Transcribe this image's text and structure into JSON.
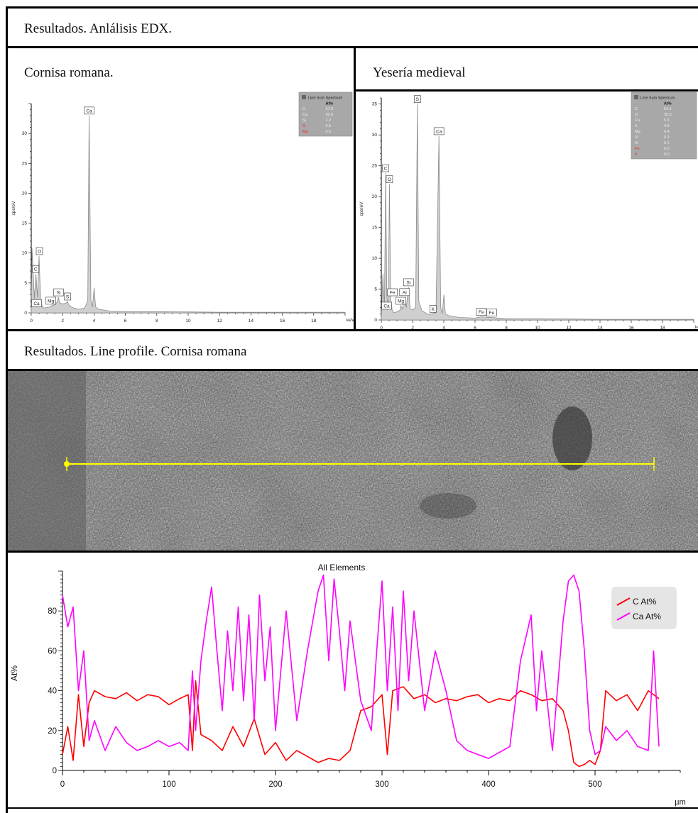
{
  "headings": {
    "edx": "Resultados. Anlálisis EDX.",
    "left": "Cornisa romana.",
    "right": "Yesería medieval",
    "line_profile": "Resultados. Line profile. Cornisa romana"
  },
  "colors": {
    "spectrum_fill": "#cfcfcf",
    "spectrum_stroke": "#8a8a8a",
    "marker": "#ffff00",
    "C": "#ff0000",
    "Ca": "#ff00ff"
  },
  "chart_data": [
    {
      "type": "area",
      "xlabel": "keV",
      "ylabel": "cps/eV",
      "xlim": [
        0,
        20
      ],
      "ylim": [
        0,
        35
      ],
      "xticks": [
        "0",
        "2",
        "4",
        "6",
        "8",
        "10",
        "12",
        "14",
        "16",
        "18"
      ],
      "yticks": [
        "0",
        "5",
        "10",
        "15",
        "20",
        "25",
        "30"
      ],
      "x": [
        0,
        0.05,
        0.2,
        0.3,
        0.4,
        0.5,
        0.55,
        0.6,
        0.7,
        0.8,
        1.0,
        1.2,
        1.3,
        1.45,
        1.55,
        1.65,
        1.74,
        1.8,
        1.9,
        2.0,
        2.2,
        2.31,
        2.4,
        2.6,
        3.0,
        3.4,
        3.6,
        3.69,
        3.8,
        3.9,
        4.01,
        4.1,
        4.3,
        5,
        6,
        8,
        10,
        12,
        14,
        16,
        18,
        20
      ],
      "y": [
        0,
        10.8,
        2.4,
        6.5,
        2.5,
        9.5,
        5.5,
        2,
        1.1,
        0.8,
        0.9,
        1.0,
        1.2,
        1.3,
        1.5,
        1.8,
        2.6,
        1.7,
        1.6,
        1.5,
        1.6,
        1.9,
        1.3,
        0.9,
        0.6,
        0.8,
        2,
        33,
        2,
        1.0,
        4.2,
        1.0,
        0.6,
        0.3,
        0.2,
        0.2,
        0.15,
        0.1,
        0.1,
        0.1,
        0.1,
        0.1
      ],
      "peaks": [
        {
          "label": "Ca",
          "x": 3.69,
          "y": 33
        },
        {
          "label": "O",
          "x": 0.52,
          "y": 9.5
        },
        {
          "label": "C",
          "x": 0.28,
          "y": 6.5
        },
        {
          "label": "Si",
          "x": 1.74,
          "y": 2.6
        },
        {
          "label": "S",
          "x": 2.31,
          "y": 1.9
        },
        {
          "label": "Mg",
          "x": 1.25,
          "y": 1.2
        },
        {
          "label": "Ca",
          "x": 0.34,
          "y": 0.8
        }
      ],
      "legend_title": "Line Sum Spectrum",
      "legend_unit": "At%",
      "legend": [
        {
          "el": "O",
          "v": "67.9",
          "red": false
        },
        {
          "el": "Ca",
          "v": "30.0",
          "red": false
        },
        {
          "el": "Si",
          "v": "1.2",
          "red": false
        },
        {
          "el": "S",
          "v": "0.5",
          "red": true
        },
        {
          "el": "Mg",
          "v": "0.5",
          "red": true
        }
      ]
    },
    {
      "type": "area",
      "xlabel": "keV",
      "ylabel": "cps/eV",
      "xlim": [
        0,
        20
      ],
      "ylim": [
        0,
        36
      ],
      "xticks": [
        "0",
        "2",
        "4",
        "6",
        "8",
        "10",
        "12",
        "14",
        "16",
        "18"
      ],
      "yticks": [
        "0",
        "5",
        "10",
        "15",
        "20",
        "25",
        "30",
        "35"
      ],
      "x": [
        0,
        0.1,
        0.2,
        0.28,
        0.35,
        0.45,
        0.52,
        0.6,
        0.7,
        0.8,
        1.0,
        1.2,
        1.25,
        1.35,
        1.49,
        1.6,
        1.74,
        1.85,
        2.0,
        2.2,
        2.31,
        2.4,
        2.6,
        3.0,
        3.31,
        3.5,
        3.69,
        3.8,
        3.9,
        4.01,
        4.1,
        4.3,
        5,
        6,
        6.4,
        7.06,
        8,
        10,
        12,
        14,
        16,
        18,
        20
      ],
      "y": [
        0,
        7.5,
        2.0,
        23.8,
        4,
        2,
        22,
        3.5,
        1.5,
        1.2,
        1.3,
        1.6,
        2.3,
        1.8,
        3.7,
        2.0,
        5.3,
        1.8,
        1.6,
        2.0,
        35,
        3,
        1.5,
        0.9,
        1.0,
        1.2,
        29.8,
        2.0,
        1.0,
        4.1,
        1.0,
        0.7,
        0.4,
        0.3,
        0.5,
        0.4,
        0.2,
        0.2,
        0.15,
        0.1,
        0.1,
        0.1,
        0.1
      ],
      "peaks": [
        {
          "label": "S",
          "x": 2.31,
          "y": 35
        },
        {
          "label": "Ca",
          "x": 3.69,
          "y": 29.8
        },
        {
          "label": "C",
          "x": 0.28,
          "y": 23.8
        },
        {
          "label": "O",
          "x": 0.52,
          "y": 22
        },
        {
          "label": "Al",
          "x": 1.49,
          "y": 3.7
        },
        {
          "label": "Si",
          "x": 1.74,
          "y": 5.3
        },
        {
          "label": "Mg",
          "x": 1.25,
          "y": 2.3
        },
        {
          "label": "Ca",
          "x": 0.34,
          "y": 1.5
        },
        {
          "label": "Fe",
          "x": 0.71,
          "y": 1.2
        },
        {
          "label": "K",
          "x": 3.31,
          "y": 1.0
        },
        {
          "label": "Fe",
          "x": 6.4,
          "y": 0.5
        },
        {
          "label": "Fe",
          "x": 7.06,
          "y": 0.4
        }
      ],
      "legend_title": "Line Sum Spectrum",
      "legend_unit": "At%",
      "legend": [
        {
          "el": "C",
          "v": "54.1",
          "red": false
        },
        {
          "el": "O",
          "v": "35.0",
          "red": false
        },
        {
          "el": "Ca",
          "v": "5.5",
          "red": false
        },
        {
          "el": "S",
          "v": "4.5",
          "red": false
        },
        {
          "el": "Mg",
          "v": "0.4",
          "red": false
        },
        {
          "el": "Si",
          "v": "0.3",
          "red": false
        },
        {
          "el": "Al",
          "v": "0.1",
          "red": false
        },
        {
          "el": "Fe",
          "v": "0.0",
          "red": true
        },
        {
          "el": "K",
          "v": "0.0",
          "red": true
        }
      ]
    },
    {
      "type": "line",
      "title": "All Elements",
      "xlabel": "µm",
      "ylabel": "At%",
      "xlim": [
        0,
        580
      ],
      "ylim": [
        0,
        100
      ],
      "xticks": [
        0,
        100,
        200,
        300,
        400,
        500
      ],
      "yticks": [
        0,
        20,
        40,
        60,
        80
      ],
      "legend_position": "top-right",
      "series": [
        {
          "name": "C At%",
          "x": [
            0,
            5,
            10,
            15,
            20,
            25,
            30,
            40,
            50,
            60,
            70,
            80,
            90,
            100,
            110,
            118,
            122,
            125,
            130,
            140,
            150,
            160,
            170,
            180,
            190,
            200,
            210,
            220,
            230,
            240,
            250,
            260,
            270,
            280,
            290,
            300,
            305,
            310,
            320,
            330,
            340,
            350,
            360,
            370,
            380,
            390,
            400,
            410,
            420,
            430,
            440,
            450,
            460,
            470,
            475,
            480,
            485,
            490,
            495,
            500,
            505,
            510,
            520,
            530,
            540,
            550,
            560
          ],
          "y": [
            8,
            22,
            5,
            38,
            12,
            34,
            40,
            37,
            36,
            39,
            35,
            38,
            37,
            33,
            36,
            38,
            10,
            45,
            18,
            15,
            10,
            22,
            12,
            26,
            8,
            14,
            5,
            10,
            7,
            4,
            6,
            5,
            10,
            30,
            32,
            38,
            8,
            40,
            42,
            36,
            38,
            34,
            36,
            35,
            37,
            38,
            34,
            36,
            35,
            40,
            38,
            35,
            36,
            30,
            20,
            4,
            2,
            3,
            5,
            3,
            10,
            40,
            35,
            38,
            30,
            40,
            36
          ]
        },
        {
          "name": "Ca At%",
          "x": [
            0,
            5,
            10,
            15,
            20,
            25,
            30,
            40,
            50,
            60,
            70,
            80,
            90,
            100,
            110,
            118,
            122,
            125,
            130,
            135,
            140,
            145,
            150,
            155,
            160,
            165,
            170,
            175,
            180,
            185,
            190,
            195,
            200,
            210,
            220,
            230,
            240,
            245,
            250,
            255,
            260,
            265,
            270,
            280,
            290,
            295,
            300,
            305,
            310,
            315,
            320,
            325,
            330,
            335,
            340,
            350,
            360,
            370,
            380,
            390,
            400,
            410,
            420,
            430,
            440,
            445,
            450,
            460,
            470,
            475,
            480,
            485,
            490,
            495,
            500,
            505,
            510,
            520,
            530,
            540,
            550,
            555,
            560
          ],
          "y": [
            88,
            72,
            82,
            40,
            60,
            15,
            25,
            10,
            22,
            14,
            10,
            12,
            15,
            12,
            14,
            10,
            50,
            20,
            55,
            75,
            92,
            60,
            30,
            70,
            40,
            82,
            35,
            78,
            25,
            88,
            45,
            72,
            20,
            80,
            25,
            60,
            90,
            98,
            55,
            96,
            70,
            40,
            75,
            35,
            20,
            60,
            95,
            40,
            82,
            30,
            90,
            45,
            80,
            55,
            30,
            60,
            40,
            15,
            10,
            8,
            6,
            9,
            12,
            55,
            78,
            30,
            60,
            10,
            75,
            95,
            98,
            90,
            60,
            20,
            8,
            10,
            22,
            15,
            20,
            12,
            10,
            60,
            12
          ]
        }
      ]
    }
  ]
}
